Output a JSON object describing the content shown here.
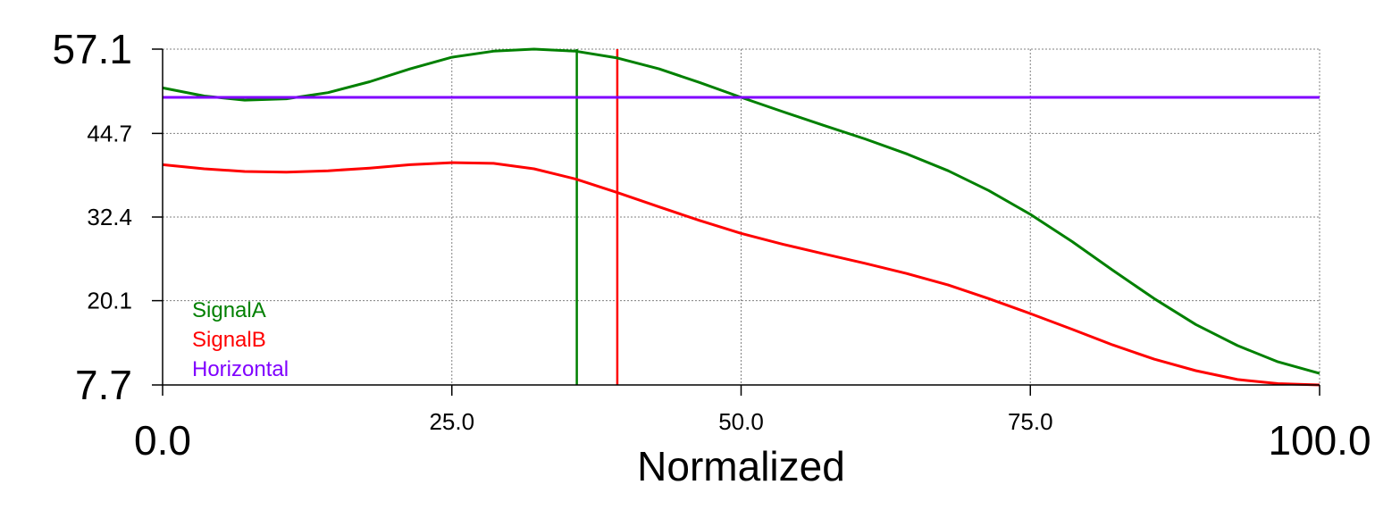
{
  "chart_data": {
    "type": "line",
    "title": "",
    "xlabel": "Normalized",
    "ylabel": "",
    "xlim": [
      0.0,
      100.0
    ],
    "ylim": [
      7.7,
      57.1
    ],
    "xticks": [
      {
        "value": 0.0,
        "label": "0.0",
        "emphasis": "large"
      },
      {
        "value": 25.0,
        "label": "25.0",
        "emphasis": "normal"
      },
      {
        "value": 50.0,
        "label": "50.0",
        "emphasis": "normal"
      },
      {
        "value": 75.0,
        "label": "75.0",
        "emphasis": "normal"
      },
      {
        "value": 100.0,
        "label": "100.0",
        "emphasis": "large"
      }
    ],
    "yticks": [
      {
        "value": 7.7,
        "label": "7.7",
        "emphasis": "large"
      },
      {
        "value": 20.1,
        "label": "20.1",
        "emphasis": "normal"
      },
      {
        "value": 32.4,
        "label": "32.4",
        "emphasis": "normal"
      },
      {
        "value": 44.7,
        "label": "44.7",
        "emphasis": "normal"
      },
      {
        "value": 57.1,
        "label": "57.1",
        "emphasis": "large"
      }
    ],
    "grid": true,
    "legend_position": "bottom-left inside",
    "series": [
      {
        "name": "SignalA",
        "color": "#008000",
        "x": [
          0,
          3.6,
          7.1,
          10.7,
          14.3,
          17.9,
          21.4,
          25.0,
          28.6,
          32.1,
          35.7,
          39.3,
          42.9,
          46.4,
          50.0,
          53.6,
          57.1,
          60.7,
          64.3,
          67.9,
          71.4,
          75.0,
          78.6,
          82.1,
          85.7,
          89.3,
          92.9,
          96.4,
          100.0
        ],
        "values": [
          51.4,
          50.2,
          49.6,
          49.8,
          50.7,
          52.3,
          54.2,
          55.9,
          56.8,
          57.1,
          56.8,
          55.8,
          54.2,
          52.2,
          50.0,
          47.9,
          45.9,
          43.9,
          41.7,
          39.2,
          36.3,
          32.8,
          28.8,
          24.6,
          20.4,
          16.6,
          13.5,
          11.1,
          9.4
        ]
      },
      {
        "name": "SignalB",
        "color": "#ff0000",
        "x": [
          0,
          3.6,
          7.1,
          10.7,
          14.3,
          17.9,
          21.4,
          25.0,
          28.6,
          32.1,
          35.7,
          39.3,
          42.9,
          46.4,
          50.0,
          53.6,
          57.1,
          60.7,
          64.3,
          67.9,
          71.4,
          75.0,
          78.6,
          82.1,
          85.7,
          89.3,
          92.9,
          96.4,
          100.0
        ],
        "values": [
          40.1,
          39.5,
          39.1,
          39.0,
          39.2,
          39.6,
          40.1,
          40.4,
          40.3,
          39.5,
          38.0,
          36.0,
          33.9,
          31.9,
          30.0,
          28.4,
          27.0,
          25.6,
          24.1,
          22.4,
          20.4,
          18.2,
          15.9,
          13.6,
          11.5,
          9.8,
          8.5,
          7.9,
          7.7
        ]
      },
      {
        "name": "Horizontal",
        "color": "#8000ff",
        "x": [
          0.0,
          100.0
        ],
        "values": [
          50.0,
          50.0
        ]
      }
    ],
    "vertical_markers": [
      {
        "name": "SignalA cursor",
        "x": 35.8,
        "color": "#008000"
      },
      {
        "name": "SignalB cursor",
        "x": 39.3,
        "color": "#ff0000"
      }
    ]
  }
}
